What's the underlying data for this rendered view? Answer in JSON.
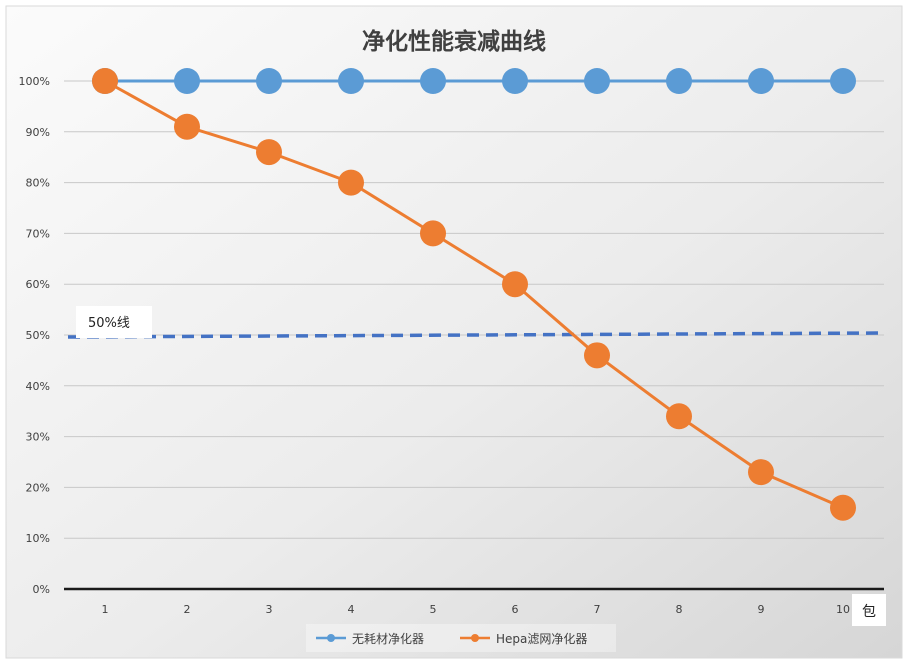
{
  "chart_data": {
    "type": "line",
    "title": "净化性能衰减曲线",
    "xlabel": "包",
    "ylabel": "",
    "categories": [
      "1",
      "2",
      "3",
      "4",
      "5",
      "6",
      "7",
      "8",
      "9",
      "10"
    ],
    "ylim": [
      0,
      100
    ],
    "yticks": [
      "0%",
      "10%",
      "20%",
      "30%",
      "40%",
      "50%",
      "60%",
      "70%",
      "80%",
      "90%",
      "100%"
    ],
    "grid": true,
    "legend_position": "bottom",
    "series": [
      {
        "name": "无耗材净化器",
        "color": "#5b9bd5",
        "values": [
          100,
          100,
          100,
          100,
          100,
          100,
          100,
          100,
          100,
          100
        ]
      },
      {
        "name": "Hepa滤网净化器",
        "color": "#ed7d31",
        "values": [
          100,
          91,
          86,
          80,
          70,
          60,
          46,
          34,
          23,
          16
        ]
      }
    ],
    "reference_line": {
      "label": "50%线",
      "value": 50,
      "color": "#4472c4",
      "style": "dashed"
    }
  }
}
